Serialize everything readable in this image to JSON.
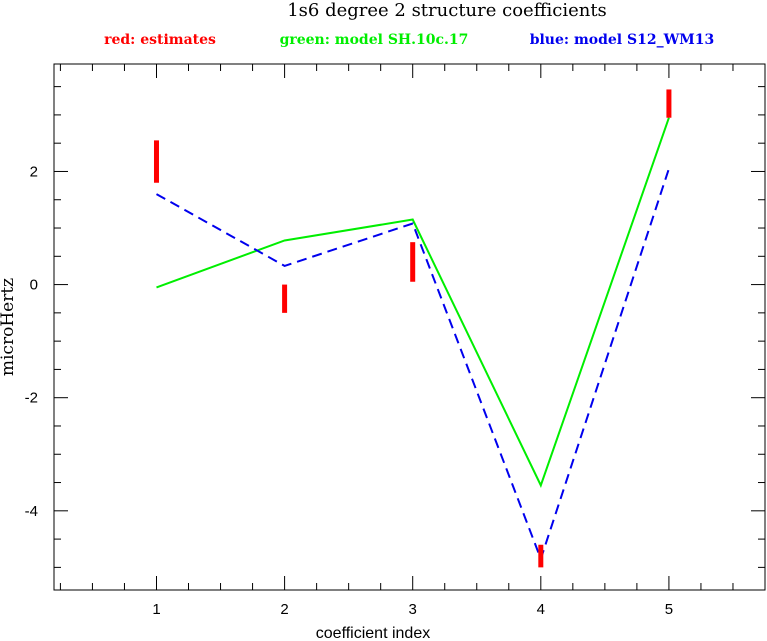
{
  "chart_data": {
    "type": "line",
    "title": "1s6 degree 2 structure coefficients",
    "legend": {
      "placement": "top",
      "entries": [
        {
          "label": "red: estimates",
          "color": "#ff0000"
        },
        {
          "label": "green: model SH.10c.17",
          "color": "#00ee00"
        },
        {
          "label": "blue: model S12_WM13",
          "color": "#0000ee"
        }
      ]
    },
    "xlabel": "coefficient index",
    "ylabel": "microHertz",
    "xlim": [
      0.2,
      5.75
    ],
    "ylim": [
      -5.4,
      3.9
    ],
    "x_ticks": [
      "1",
      "2",
      "3",
      "4",
      "5"
    ],
    "y_ticks": [
      "-4",
      "-2",
      "0",
      "2"
    ],
    "grid": false,
    "estimates": [
      {
        "x": 1,
        "low": 1.8,
        "high": 2.55
      },
      {
        "x": 2,
        "low": -0.5,
        "high": 0.0
      },
      {
        "x": 3,
        "low": 0.05,
        "high": 0.75
      },
      {
        "x": 4,
        "low": -5.0,
        "high": -4.6
      },
      {
        "x": 5,
        "low": 2.95,
        "high": 3.45
      }
    ],
    "series": [
      {
        "style": "solid",
        "color": "#00ee00",
        "x": [
          1,
          2,
          3,
          4,
          5
        ],
        "values": [
          -0.05,
          0.78,
          1.15,
          -3.55,
          2.95
        ]
      },
      {
        "style": "dashed",
        "color": "#0000ee",
        "x": [
          1,
          2,
          3,
          4,
          5
        ],
        "values": [
          1.6,
          0.33,
          1.08,
          -4.85,
          2.05
        ]
      }
    ]
  }
}
